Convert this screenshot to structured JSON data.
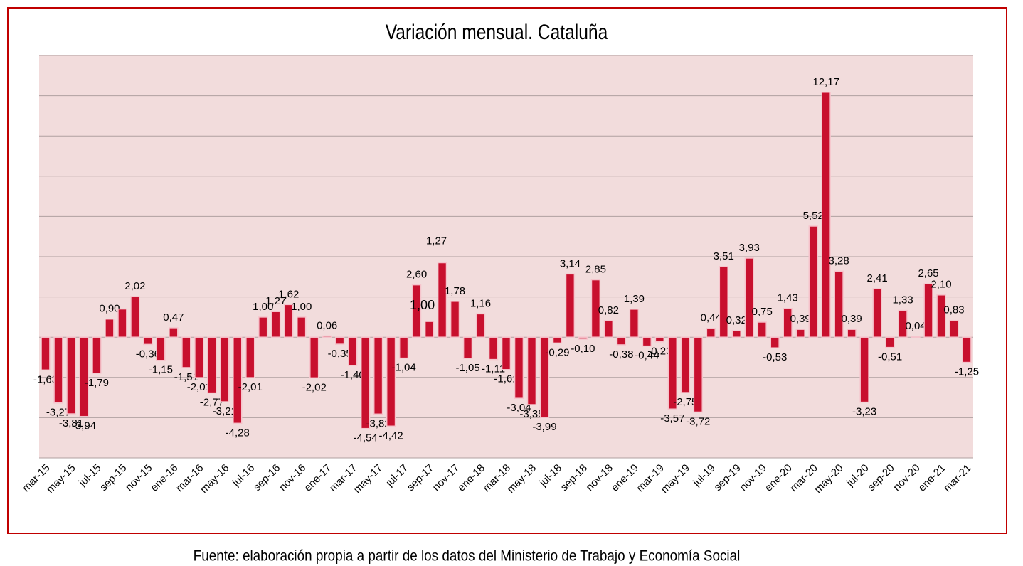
{
  "chart_data": {
    "type": "bar",
    "title": "Variación mensual. Cataluña",
    "categories": [
      "mar-15",
      null,
      "may-15",
      null,
      "jul-15",
      null,
      "sep-15",
      null,
      "nov-15",
      null,
      "ene-16",
      null,
      "mar-16",
      null,
      "may-16",
      null,
      "jul-16",
      null,
      "sep-16",
      null,
      "nov-16",
      null,
      "ene-17",
      null,
      "mar-17",
      null,
      "may-17",
      null,
      "jul-17",
      null,
      "sep-17",
      null,
      "nov-17",
      null,
      "ene-18",
      null,
      "mar-18",
      null,
      "may-18",
      null,
      "jul-18",
      null,
      "sep-18",
      null,
      "nov-18",
      null,
      "ene-19",
      null,
      "mar-19",
      null,
      "may-19",
      null,
      "jul-19",
      null,
      "sep-19",
      null,
      "nov-19",
      null,
      "ene-20",
      null,
      "mar-20",
      null,
      "may-20",
      null,
      "jul-20",
      null,
      "sep-20",
      null,
      "nov-20",
      null,
      "ene-21",
      null,
      "mar-21"
    ],
    "values": [
      -1.63,
      -3.27,
      -3.81,
      -3.94,
      -1.79,
      0.9,
      1.4,
      2.02,
      -0.36,
      -1.15,
      0.47,
      -1.51,
      -2.01,
      -2.77,
      -3.21,
      -4.28,
      -2.01,
      1.0,
      1.27,
      1.62,
      1.0,
      -2.02,
      0.06,
      -0.35,
      -1.4,
      -4.54,
      -3.82,
      -4.42,
      -1.04,
      2.6,
      0.78,
      3.7,
      1.78,
      -1.05,
      1.16,
      -1.11,
      -1.61,
      -3.04,
      -3.35,
      -3.99,
      -0.29,
      3.14,
      -0.1,
      2.85,
      0.82,
      -0.38,
      1.39,
      -0.44,
      -0.23,
      -3.57,
      -2.75,
      -3.72,
      0.44,
      3.51,
      0.32,
      3.93,
      0.75,
      -0.53,
      1.43,
      0.39,
      5.52,
      12.17,
      3.28,
      0.39,
      -3.23,
      2.41,
      -0.51,
      1.33,
      0.04,
      2.65,
      2.1,
      0.83,
      -1.25
    ],
    "value_labels": [
      "-1,63",
      "-3,27",
      "-3,81",
      "-3,94",
      "-1,79",
      "0,90",
      null,
      "2,02",
      "-0,36",
      "-1,15",
      "0,47",
      "-1,51",
      "-2,01",
      "-2,77",
      "-3,21",
      "-4,28",
      "-2,01",
      "1,00",
      "1,27",
      "1,62",
      "1,00",
      "-2,02",
      "0,06",
      "-0,35",
      "-1,40",
      "-4,54",
      "-3,82",
      "-4,42",
      "-1,04",
      "2,60",
      null,
      null,
      "1,78",
      "-1,05",
      "1,16",
      "-1,11",
      "-1,61",
      "-3,04",
      "-3,35",
      "-3,99",
      "-0,29",
      "3,14",
      "-0,10",
      "2,85",
      "0,82",
      "-0,38",
      "1,39",
      "-0,44",
      "-0,23",
      "-3,57",
      "-2,75",
      "-3,72",
      "0,44",
      "3,51",
      "0,32",
      "3,93",
      "0,75",
      "-0,53",
      "1,43",
      "0,39",
      "5,52",
      "12,17",
      "3,28",
      "0,39",
      "-3,23",
      "2,41",
      "-0,51",
      "1,33",
      "0,04",
      "2,65",
      "2,10",
      "0,83",
      "-1,25"
    ],
    "annotations": [
      "1,00",
      "1,27"
    ],
    "color": "#c8102e",
    "ylim": [
      -6,
      14
    ],
    "yticks": [
      -6,
      -4,
      -2,
      0,
      2,
      4,
      6,
      8,
      10,
      12,
      14
    ],
    "grid": true
  },
  "footer": "Fuente: elaboración propia a partir de los datos del Ministerio de Trabajo y Economía Social"
}
